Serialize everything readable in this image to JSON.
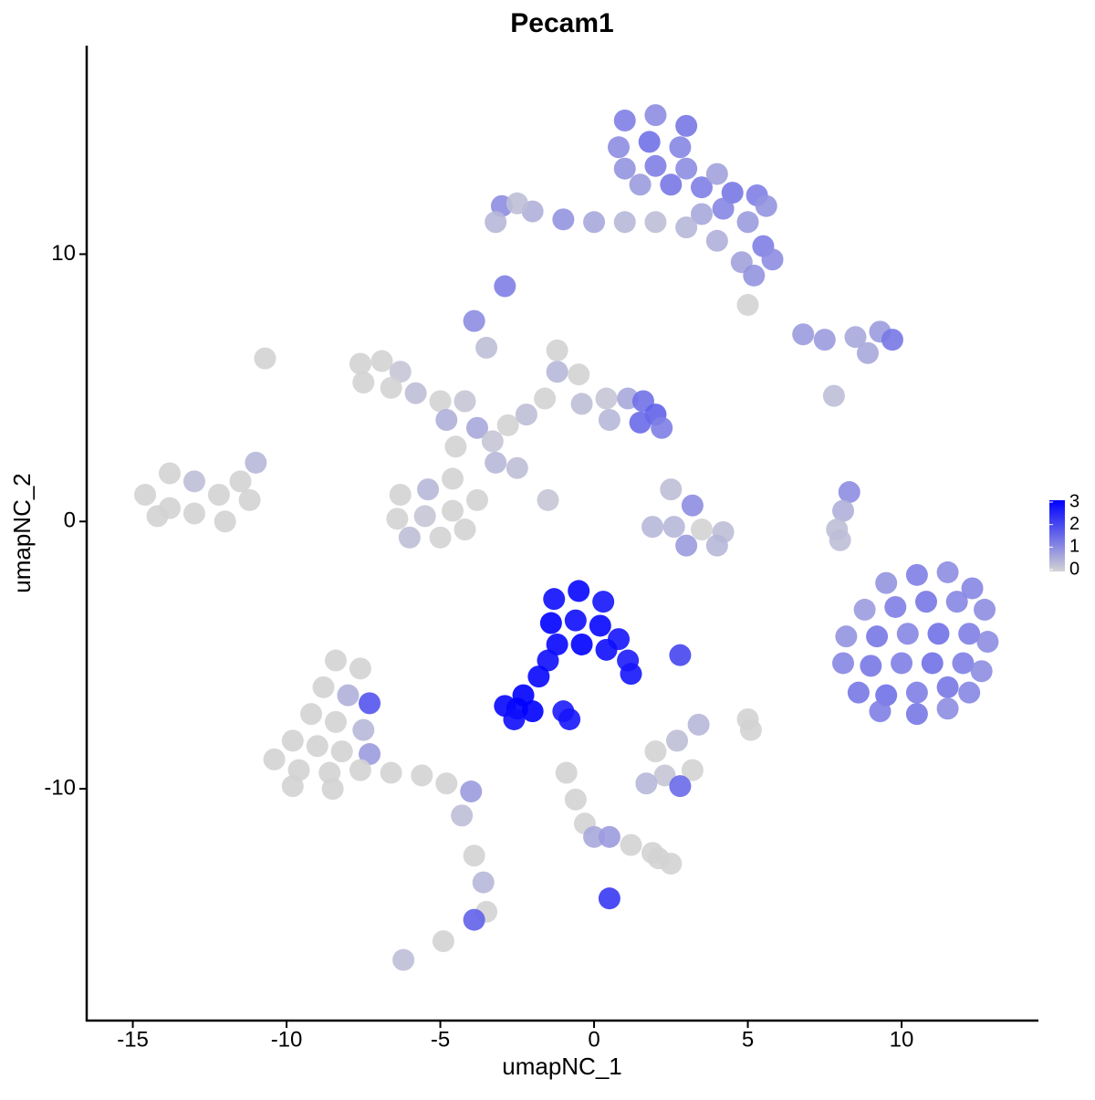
{
  "chart_data": {
    "type": "scatter",
    "title": "Pecam1",
    "x_label": "umapNC_1",
    "y_label": "umapNC_2",
    "xlim": [
      -16.5,
      14.45
    ],
    "ylim": [
      -18.67,
      17.8
    ],
    "xticks": [
      -15,
      -10,
      -5,
      0,
      5,
      10
    ],
    "yticks": [
      -10,
      0,
      10
    ],
    "color_scale": {
      "lim": [
        0,
        3
      ],
      "ticks": [
        0,
        1,
        2,
        3
      ],
      "low": "#d3d3d3",
      "high": "#0000ff"
    },
    "x": [
      1,
      2,
      3,
      0.8,
      1.8,
      2.8,
      1,
      2,
      3,
      1.5,
      2.5,
      3.5,
      4,
      4.5,
      5.3,
      5.6,
      4.2,
      3.5,
      5,
      5.5,
      5.8,
      4.8,
      5.2,
      4,
      3,
      2,
      1,
      0,
      -1,
      -2,
      -3,
      -3.2,
      -2.5,
      -2.9,
      6.8,
      7.5,
      8.5,
      9.3,
      9.7,
      8.9,
      7.8,
      -10.7,
      5,
      -7.6,
      -6.9,
      -6.3,
      -7.5,
      -6.6,
      -5.8,
      -5,
      -4.8,
      -4.2,
      -3.8,
      -3.3,
      -4.5,
      -3.2,
      -2.8,
      -2.2,
      -1.6,
      -1.2,
      -1.2,
      -0.5,
      -0.4,
      0.4,
      1.1,
      1.6,
      2,
      2.2,
      1.5,
      0.5,
      -3.9,
      -3.5,
      -2.5,
      -1.5,
      -6.3,
      -5.4,
      -4.6,
      -6.4,
      -5.5,
      -4.6,
      -3.8,
      -6,
      -5,
      -4.2,
      -14.6,
      -13.8,
      -13,
      -13,
      -12.2,
      -12,
      -11.5,
      -11,
      -11.2,
      -13.8,
      -14.2,
      2.5,
      3.2,
      2.6,
      3.5,
      4.2,
      3,
      4,
      1.9,
      8.3,
      8.1,
      7.9,
      8,
      9.5,
      10.5,
      11.5,
      12.3,
      8.8,
      9.8,
      10.8,
      11.8,
      12.7,
      8.2,
      9.2,
      10.2,
      11.2,
      12.2,
      12.8,
      8.1,
      9,
      10,
      11,
      12,
      12.6,
      8.6,
      9.5,
      10.5,
      11.5,
      12.2,
      9.3,
      10.5,
      11.5,
      -1.3,
      -0.5,
      0.3,
      -1.4,
      -0.6,
      0.2,
      0.8,
      -1.2,
      -0.4,
      0.4,
      1.1,
      1.2,
      -1.5,
      -1.8,
      -2.3,
      -2.5,
      -2.9,
      -2,
      -2.6,
      -1,
      -0.8,
      2.8,
      -8.4,
      -7.6,
      -8.8,
      -8,
      -7.3,
      -9.2,
      -8.4,
      -7.5,
      -9.8,
      -9,
      -8.2,
      -7.3,
      -10.4,
      -9.6,
      -8.6,
      -7.6,
      -6.6,
      -5.6,
      -4.8,
      -4,
      -9.8,
      -8.5,
      -4.3,
      -3.9,
      -3.6,
      -3.5,
      -3.9,
      -6.2,
      -4.9,
      2,
      2.7,
      3.2,
      2.3,
      1.7,
      2.8,
      3.4,
      5,
      5.1,
      -0.9,
      -0.6,
      -0.3,
      0,
      0.5,
      1.2,
      1.9,
      2.5,
      2.1,
      0.5
    ],
    "values": [
      15,
      15.2,
      14.8,
      14,
      14.2,
      14,
      13.2,
      13.3,
      13.2,
      12.6,
      12.6,
      12.5,
      13,
      12.3,
      12.2,
      11.8,
      11.7,
      11.5,
      11.2,
      10.3,
      9.8,
      9.7,
      9.2,
      10.5,
      11,
      11.2,
      11.2,
      11.2,
      11.3,
      11.6,
      11.8,
      11.2,
      11.9,
      8.8,
      7,
      6.8,
      6.9,
      7.1,
      6.8,
      6.3,
      4.7,
      6.1,
      8.1,
      5.9,
      6,
      5.6,
      5.2,
      5,
      4.8,
      4.5,
      3.8,
      4.5,
      3.5,
      3,
      2.8,
      2.2,
      3.6,
      4,
      4.6,
      5.6,
      6.4,
      5.5,
      4.4,
      4.6,
      4.6,
      4.5,
      4,
      3.5,
      3.7,
      3.8,
      7.5,
      6.5,
      2,
      0.8,
      1,
      1.2,
      1.6,
      0.1,
      0.2,
      0.4,
      0.8,
      -0.6,
      -0.6,
      -0.3,
      1,
      0.5,
      1.5,
      0.3,
      1,
      0,
      1.5,
      2.2,
      0.8,
      1.8,
      0.2,
      1.2,
      0.6,
      -0.2,
      -0.3,
      -0.4,
      -0.9,
      -0.9,
      -0.2,
      1.1,
      0.4,
      -0.3,
      -0.7,
      -2.3,
      -2,
      -1.9,
      -2.5,
      -3.3,
      -3.2,
      -3,
      -3,
      -3.3,
      -4.3,
      -4.3,
      -4.2,
      -4.2,
      -4.2,
      -4.5,
      -5.3,
      -5.4,
      -5.3,
      -5.3,
      -5.3,
      -5.6,
      -6.4,
      -6.5,
      -6.4,
      -6.2,
      -6.4,
      -7.1,
      -7.2,
      -7,
      -2.9,
      -2.6,
      -3,
      -3.8,
      -3.7,
      -3.9,
      -4.4,
      -4.6,
      -4.6,
      -4.8,
      -5.2,
      -5.7,
      -5.2,
      -5.8,
      -6.5,
      -7,
      -6.9,
      -7.1,
      -7.4,
      -7.1,
      -7.4,
      -5,
      -5.2,
      -5.5,
      -6.2,
      -6.5,
      -6.8,
      -7.2,
      -7.5,
      -7.8,
      -8.2,
      -8.4,
      -8.6,
      -8.7,
      -8.9,
      -9.3,
      -9.4,
      -9.3,
      -9.4,
      -9.5,
      -9.8,
      -10.1,
      -9.9,
      -10,
      -11,
      -12.5,
      -13.5,
      -14.6,
      -14.9,
      -16.4,
      -15.7,
      -8.6,
      -8.2,
      -9.3,
      -9.5,
      -9.8,
      -9.9,
      -7.6,
      -7.4,
      -7.8,
      -9.4,
      -10.4,
      -11.3,
      -11.8,
      -11.8,
      -12.1,
      -12.4,
      -12.8,
      -12.6,
      -14.1
    ],
    "expression": [
      1.2,
      1,
      1.3,
      1,
      1.4,
      1.1,
      0.9,
      1.2,
      1,
      0.8,
      1.3,
      1.2,
      0.7,
      1.3,
      1.2,
      0.9,
      1.1,
      0.6,
      0.8,
      1.2,
      1,
      0.7,
      0.9,
      0.5,
      0.4,
      0.3,
      0.4,
      0.6,
      0.9,
      0.5,
      1,
      0.4,
      0.3,
      1.2,
      0.8,
      0.8,
      0.6,
      0.8,
      1.3,
      0.6,
      0.3,
      0,
      0,
      0,
      0,
      0.2,
      0,
      0,
      0.3,
      0,
      0.5,
      0.2,
      0.6,
      0.2,
      0,
      0.4,
      0,
      0.3,
      0,
      0.4,
      0,
      0,
      0.3,
      0.2,
      0.6,
      1.4,
      1.6,
      1.2,
      1.5,
      0.4,
      1,
      0.3,
      0.3,
      0.2,
      0,
      0.4,
      0,
      0,
      0.2,
      0,
      0,
      0.3,
      0,
      0,
      0,
      0,
      0.3,
      0,
      0,
      0,
      0,
      0.4,
      0,
      0,
      0,
      0.3,
      1,
      0.4,
      0,
      0.3,
      0.8,
      0.4,
      0.4,
      1,
      0.5,
      0.3,
      0.3,
      0.9,
      1.2,
      1,
      1.1,
      0.8,
      1.2,
      1.3,
      1.1,
      1,
      0.9,
      1.3,
      1.1,
      1.4,
      1.2,
      1,
      1.1,
      1.3,
      1.2,
      1.4,
      1.2,
      1,
      1.3,
      1.4,
      1.2,
      1.3,
      1.1,
      1.2,
      1.3,
      1,
      2.8,
      2.9,
      2.7,
      3,
      2.8,
      2.9,
      2.7,
      2.9,
      3,
      2.8,
      2.6,
      2.7,
      2.8,
      2.9,
      3,
      3,
      2.9,
      3,
      2.8,
      2.6,
      2.7,
      2,
      0,
      0,
      0,
      0.5,
      1.8,
      0,
      0,
      0.4,
      0,
      0,
      0,
      0.8,
      0,
      0,
      0,
      0,
      0,
      0,
      0,
      0.8,
      0,
      0,
      0.3,
      0,
      0.4,
      0,
      1.6,
      0.3,
      0,
      0,
      0.3,
      0,
      0.2,
      0.4,
      1.5,
      0.4,
      0,
      0,
      0,
      0,
      0,
      0.6,
      0.8,
      0,
      0,
      0,
      0,
      2.2
    ]
  }
}
